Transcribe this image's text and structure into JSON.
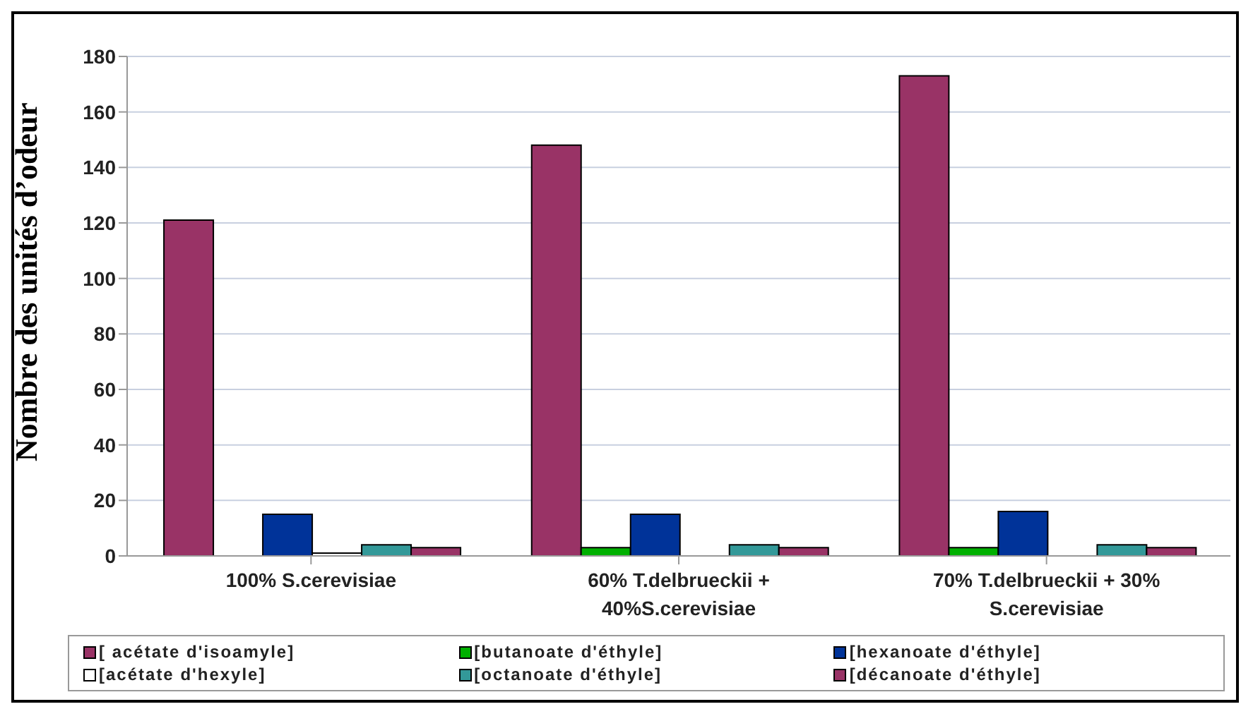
{
  "chart_data": {
    "type": "bar",
    "ylabel": "Nombre des unités d’odeur",
    "categories": [
      "100% S.cerevisiae",
      "60% T.delbrueckii + 40%S.cerevisiae",
      "70% T.delbrueckii + 30% S.cerevisiae"
    ],
    "series": [
      {
        "name": "[ acétate d'isoamyle]",
        "color": "#993366",
        "values": [
          121,
          148,
          173
        ]
      },
      {
        "name": "[butanoate d'éthyle]",
        "color": "#00b000",
        "values": [
          0,
          3,
          3
        ]
      },
      {
        "name": "[hexanoate d'éthyle]",
        "color": "#003399",
        "values": [
          15,
          15,
          16
        ]
      },
      {
        "name": "[acétate d'hexyle]",
        "color": "#ffffff",
        "values": [
          1,
          0,
          0
        ]
      },
      {
        "name": "[octanoate d'éthyle]",
        "color": "#339999",
        "values": [
          4,
          4,
          4
        ]
      },
      {
        "name": "[décanoate d'éthyle]",
        "color": "#993366",
        "values": [
          3,
          3,
          3
        ]
      }
    ],
    "ylim": [
      0,
      180
    ],
    "yticks": [
      0,
      20,
      40,
      60,
      80,
      100,
      120,
      140,
      160,
      180
    ],
    "grid": "y",
    "legend": "bottom"
  }
}
